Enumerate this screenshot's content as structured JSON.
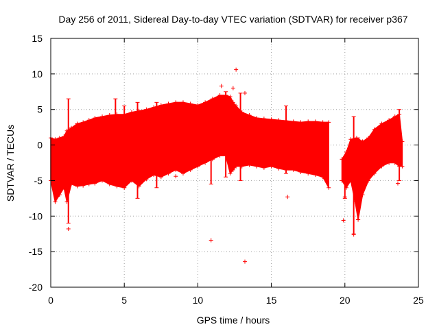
{
  "chart_data": {
    "type": "scatter",
    "title": "Day 256 of 2011, Sidereal Day-to-day VTEC variation (SDTVAR) for receiver p367",
    "xlabel": "GPS time / hours",
    "ylabel": "SDTVAR / TECUs",
    "xlim": [
      0,
      25
    ],
    "ylim": [
      -20,
      15
    ],
    "x_ticks": [
      0,
      5,
      10,
      15,
      20,
      25
    ],
    "y_ticks": [
      -20,
      -15,
      -10,
      -5,
      0,
      5,
      10,
      15
    ],
    "grid": true,
    "series_color": "#ff0000",
    "marker": "plus",
    "band": {
      "name": "dense SDTVAR band (approximate envelope)",
      "segments": [
        {
          "upper": [
            [
              0.0,
              1.0
            ],
            [
              0.3,
              0.8
            ],
            [
              0.6,
              1.0
            ],
            [
              0.9,
              1.2
            ],
            [
              1.1,
              2.0
            ],
            [
              1.4,
              2.4
            ],
            [
              1.8,
              3.0
            ],
            [
              2.2,
              3.2
            ],
            [
              2.6,
              3.5
            ],
            [
              3.0,
              3.8
            ],
            [
              3.5,
              4.0
            ],
            [
              4.0,
              4.2
            ],
            [
              4.5,
              4.3
            ],
            [
              5.0,
              4.3
            ],
            [
              5.5,
              4.6
            ],
            [
              6.0,
              4.8
            ],
            [
              6.5,
              5.0
            ],
            [
              7.0,
              5.3
            ],
            [
              7.5,
              5.6
            ],
            [
              8.0,
              5.8
            ],
            [
              8.5,
              6.0
            ],
            [
              9.0,
              6.0
            ],
            [
              9.5,
              5.8
            ],
            [
              10.0,
              5.6
            ],
            [
              10.5,
              6.0
            ],
            [
              11.0,
              6.5
            ],
            [
              11.5,
              7.0
            ],
            [
              11.9,
              7.0
            ],
            [
              12.2,
              6.8
            ],
            [
              12.4,
              6.0
            ],
            [
              12.6,
              5.5
            ],
            [
              13.0,
              4.6
            ],
            [
              13.5,
              4.2
            ],
            [
              14.0,
              3.8
            ],
            [
              14.5,
              3.7
            ],
            [
              15.0,
              3.6
            ],
            [
              15.5,
              3.5
            ],
            [
              16.0,
              3.4
            ],
            [
              16.5,
              3.3
            ],
            [
              17.0,
              3.2
            ],
            [
              17.5,
              3.3
            ],
            [
              18.0,
              3.3
            ],
            [
              18.5,
              3.2
            ],
            [
              18.9,
              3.2
            ]
          ],
          "lower": [
            [
              0.0,
              -5.0
            ],
            [
              0.3,
              -8.0
            ],
            [
              0.6,
              -7.0
            ],
            [
              0.9,
              -6.0
            ],
            [
              1.1,
              -8.0
            ],
            [
              1.4,
              -5.5
            ],
            [
              1.8,
              -5.8
            ],
            [
              2.2,
              -5.7
            ],
            [
              2.6,
              -5.5
            ],
            [
              3.0,
              -5.4
            ],
            [
              3.5,
              -5.0
            ],
            [
              4.0,
              -5.5
            ],
            [
              4.5,
              -5.8
            ],
            [
              5.0,
              -6.0
            ],
            [
              5.5,
              -5.0
            ],
            [
              6.0,
              -5.8
            ],
            [
              6.5,
              -4.8
            ],
            [
              7.0,
              -4.2
            ],
            [
              7.5,
              -4.5
            ],
            [
              8.0,
              -4.0
            ],
            [
              8.5,
              -3.5
            ],
            [
              9.0,
              -4.0
            ],
            [
              9.5,
              -3.5
            ],
            [
              10.0,
              -3.0
            ],
            [
              10.5,
              -2.5
            ],
            [
              11.0,
              -2.0
            ],
            [
              11.5,
              -1.5
            ],
            [
              11.9,
              -1.5
            ],
            [
              12.2,
              -4.0
            ],
            [
              12.4,
              -3.5
            ],
            [
              12.6,
              -3.0
            ],
            [
              13.0,
              -3.0
            ],
            [
              13.5,
              -2.8
            ],
            [
              14.0,
              -3.0
            ],
            [
              14.5,
              -3.2
            ],
            [
              15.0,
              -3.0
            ],
            [
              15.5,
              -3.3
            ],
            [
              16.0,
              -3.5
            ],
            [
              16.5,
              -3.5
            ],
            [
              17.0,
              -3.8
            ],
            [
              17.5,
              -4.0
            ],
            [
              18.0,
              -4.2
            ],
            [
              18.5,
              -4.5
            ],
            [
              18.9,
              -6.0
            ]
          ]
        },
        {
          "upper": [
            [
              19.8,
              -2.0
            ],
            [
              20.1,
              -1.0
            ],
            [
              20.4,
              0.8
            ],
            [
              20.8,
              1.0
            ],
            [
              21.2,
              0.5
            ],
            [
              21.6,
              1.0
            ],
            [
              22.0,
              2.2
            ],
            [
              22.5,
              3.0
            ],
            [
              23.0,
              3.5
            ],
            [
              23.4,
              4.0
            ],
            [
              23.7,
              4.3
            ],
            [
              23.9,
              0.5
            ]
          ],
          "lower": [
            [
              19.8,
              -5.0
            ],
            [
              20.1,
              -6.0
            ],
            [
              20.4,
              -5.0
            ],
            [
              20.7,
              -8.0
            ],
            [
              20.9,
              -10.5
            ],
            [
              21.2,
              -7.0
            ],
            [
              21.6,
              -5.0
            ],
            [
              22.0,
              -4.0
            ],
            [
              22.5,
              -3.0
            ],
            [
              23.0,
              -2.5
            ],
            [
              23.4,
              -2.5
            ],
            [
              23.7,
              -3.0
            ],
            [
              23.9,
              -3.0
            ]
          ]
        }
      ]
    },
    "vertical_spikes": [
      [
        1.2,
        6.5,
        -11.0
      ],
      [
        4.4,
        6.5,
        -5.0
      ],
      [
        5.0,
        5.5,
        -6.0
      ],
      [
        5.9,
        6.0,
        -7.5
      ],
      [
        7.2,
        6.0,
        -6.0
      ],
      [
        10.9,
        -1.0,
        -5.5
      ],
      [
        11.9,
        7.5,
        -4.5
      ],
      [
        12.9,
        7.3,
        -5.0
      ],
      [
        16.0,
        5.5,
        -4.0
      ],
      [
        20.0,
        -2.0,
        -7.5
      ],
      [
        20.6,
        4.0,
        -12.5
      ],
      [
        20.9,
        1.0,
        -10.5
      ],
      [
        23.7,
        5.0,
        -5.0
      ]
    ],
    "outliers": [
      {
        "x": 12.6,
        "y": 10.6
      },
      {
        "x": 13.2,
        "y": 7.3
      },
      {
        "x": 11.6,
        "y": 8.3
      },
      {
        "x": 12.4,
        "y": 8.0
      },
      {
        "x": 10.9,
        "y": -13.4
      },
      {
        "x": 13.2,
        "y": -16.4
      },
      {
        "x": 1.2,
        "y": -11.8
      },
      {
        "x": 19.9,
        "y": -10.6
      },
      {
        "x": 20.0,
        "y": -7.3
      },
      {
        "x": 16.1,
        "y": -7.3
      },
      {
        "x": 20.6,
        "y": -12.6
      },
      {
        "x": 23.6,
        "y": -5.4
      },
      {
        "x": 8.5,
        "y": -4.4
      }
    ]
  }
}
